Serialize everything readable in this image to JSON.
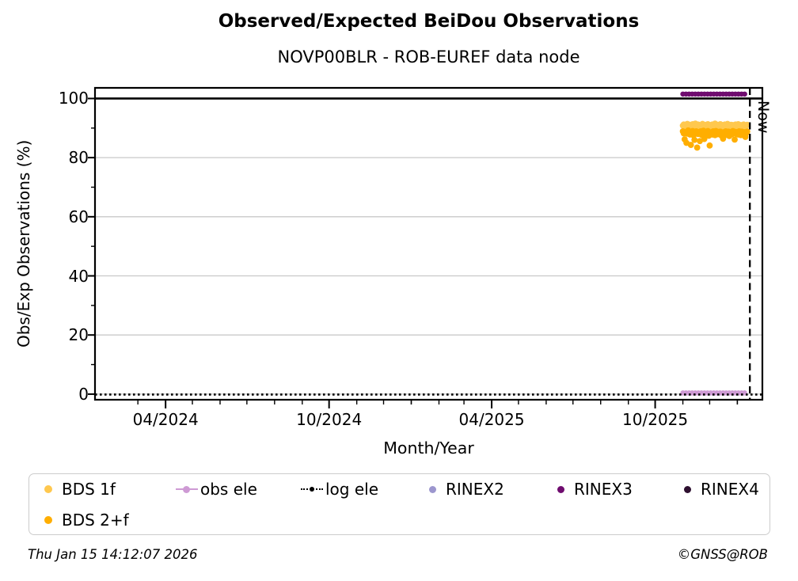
{
  "title": "Observed/Expected BeiDou Observations",
  "subtitle": "NOVP00BLR - ROB-EUREF data node",
  "footer": {
    "timestamp": "Thu Jan 15 14:12:07 2026",
    "copyright": "©GNSS@ROB"
  },
  "chart_data": {
    "type": "scatter",
    "title": "Observed/Expected BeiDou Observations",
    "subtitle": "NOVP00BLR - ROB-EUREF data node",
    "xlabel": "Month/Year",
    "ylabel": "Obs/Exp Observations (%)",
    "grid": {
      "color": "#c9c9c9",
      "at": [
        0,
        20,
        40,
        60,
        80,
        100
      ]
    },
    "x_axis": {
      "start": "2024-01-13",
      "end": "2026-01-29",
      "minor_tick_interval": "month",
      "major_ticks": [
        {
          "date": "2024-04-01",
          "label": "04/2024"
        },
        {
          "date": "2024-10-01",
          "label": "10/2024"
        },
        {
          "date": "2025-04-01",
          "label": "04/2025"
        },
        {
          "date": "2025-10-01",
          "label": "10/2025"
        }
      ]
    },
    "y_axis": {
      "min": -1.9,
      "max": 103.6,
      "minor_ticks": [
        10,
        30,
        50,
        70,
        90
      ],
      "major_ticks": [
        {
          "value": 100,
          "label": "100"
        },
        {
          "value": 80,
          "label": "80"
        },
        {
          "value": 60,
          "label": "60"
        },
        {
          "value": 40,
          "label": "40"
        },
        {
          "value": 20,
          "label": "20"
        },
        {
          "value": 0,
          "label": "0"
        }
      ]
    },
    "reference_line": {
      "y": 100,
      "color": "#000000"
    },
    "now_marker": {
      "date": "2026-01-15",
      "label": "Now",
      "line_style": "dashed"
    },
    "series": [
      {
        "name": "BDS 1f",
        "kind": "scatter",
        "color": "#FFC84E",
        "start_date": "2025-11-01",
        "interval_days": 1,
        "values": [
          90.8,
          91.2,
          90.5,
          91.0,
          90.2,
          91.4,
          90.9,
          90.1,
          91.1,
          90.6,
          89.8,
          91.3,
          90.4,
          90.9,
          91.5,
          90.0,
          90.7,
          91.2,
          89.9,
          90.5,
          91.0,
          90.3,
          91.4,
          90.8,
          88.9,
          90.2,
          91.1,
          90.6,
          91.3,
          89.7,
          90.9,
          91.0,
          90.4,
          91.2,
          90.1,
          90.8,
          91.5,
          90.3,
          89.9,
          91.1,
          90.6,
          90.2,
          91.3,
          90.7,
          91.0,
          89.8,
          90.5,
          91.2,
          90.9,
          90.0,
          91.4,
          90.6,
          89.6,
          90.8,
          91.1,
          90.3,
          91.0,
          90.7,
          89.9,
          91.2,
          90.4,
          90.9,
          91.3,
          90.1,
          90.6,
          91.0,
          89.8,
          90.5,
          91.2,
          90.8,
          90.2,
          90.9,
          91.1
        ]
      },
      {
        "name": "BDS 2+f",
        "kind": "scatter",
        "color": "#FFAE00",
        "start_date": "2025-11-01",
        "interval_days": 1,
        "values": [
          88.9,
          88.2,
          86.2,
          88.6,
          85.0,
          88.1,
          89.2,
          88.4,
          87.8,
          84.3,
          88.8,
          89.0,
          87.5,
          86.0,
          88.3,
          88.9,
          83.4,
          88.0,
          88.6,
          85.6,
          88.9,
          87.7,
          88.4,
          89.1,
          86.3,
          88.2,
          87.9,
          88.7,
          89.0,
          87.4,
          84.1,
          88.5,
          88.1,
          87.8,
          88.9,
          88.3,
          87.6,
          89.0,
          88.4,
          87.9,
          88.7,
          88.1,
          88.8,
          87.5,
          88.2,
          86.4,
          88.6,
          88.0,
          88.9,
          87.7,
          88.4,
          88.8,
          87.3,
          88.1,
          88.6,
          87.9,
          89.0,
          88.3,
          86.1,
          88.7,
          88.0,
          88.5,
          87.8,
          88.9,
          88.2,
          87.6,
          88.8,
          88.4,
          87.9,
          88.6,
          87.0,
          88.3,
          88.8
        ]
      },
      {
        "name": "obs ele",
        "kind": "dot-line",
        "color": "#CE9AD4",
        "y": 0.4,
        "start": "2025-11-01",
        "end": "2026-01-12"
      },
      {
        "name": "log ele",
        "kind": "dotted-line",
        "color": "#000000",
        "y": 0.0,
        "start": "2024-01-13",
        "end": "2026-01-29"
      },
      {
        "name": "RINEX2",
        "kind": "scatter",
        "color": "#9C96CE",
        "values": []
      },
      {
        "name": "RINEX3",
        "kind": "dot-line",
        "color": "#6F0C6F",
        "y": 101.5,
        "start": "2025-11-01",
        "end": "2026-01-12"
      },
      {
        "name": "RINEX4",
        "kind": "scatter",
        "color": "#2E1030",
        "values": []
      }
    ]
  }
}
